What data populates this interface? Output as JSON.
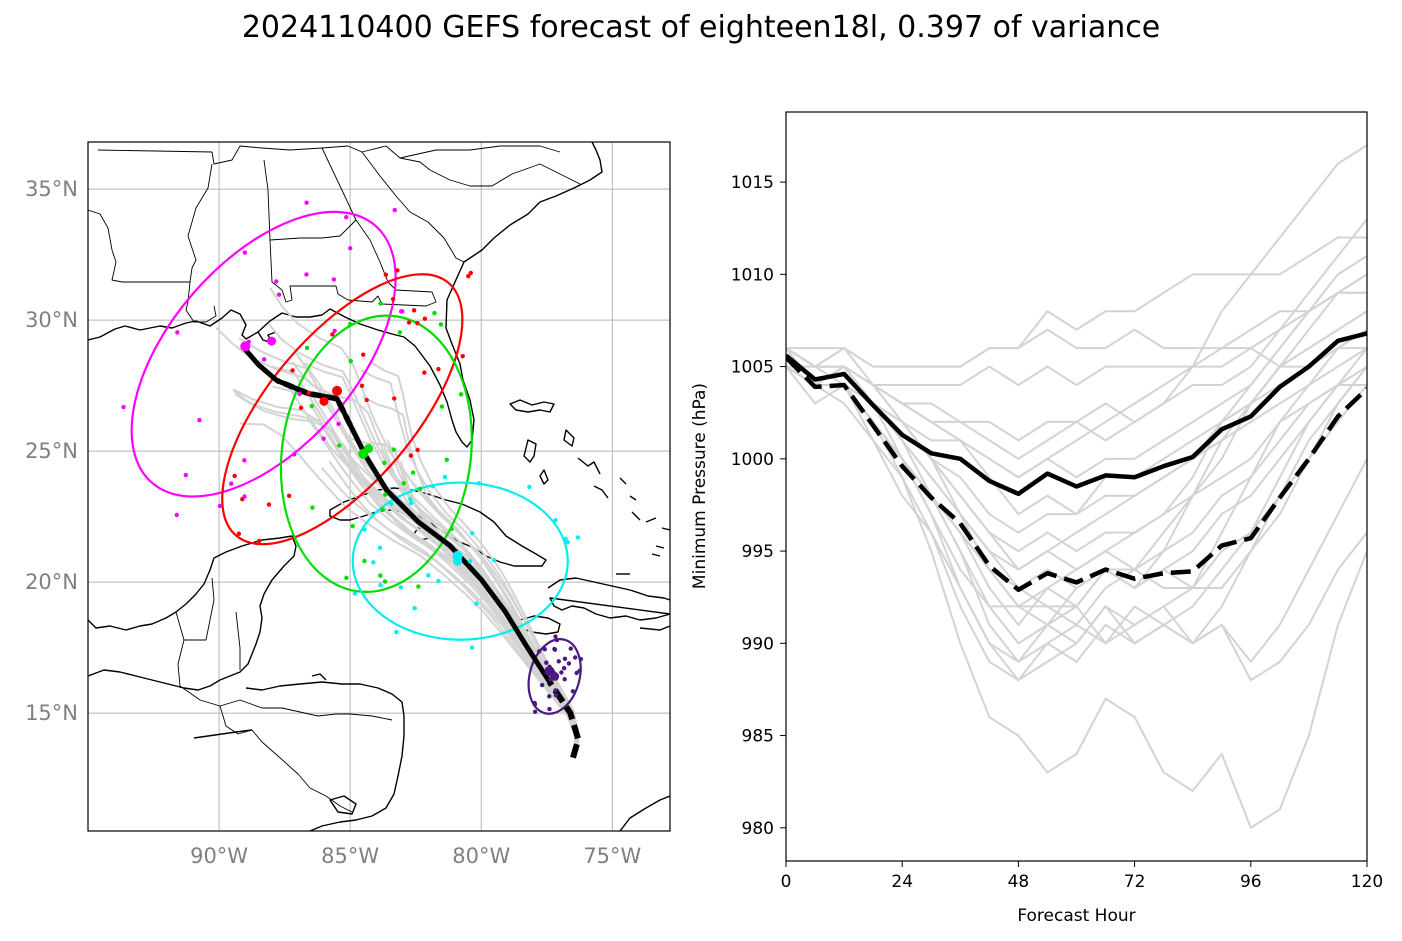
{
  "title": "2024110400 GEFS forecast of eighteen18l, 0.397 of variance",
  "map": {
    "lat_labels": [
      "35°N",
      "30°N",
      "25°N",
      "20°N",
      "15°N"
    ],
    "lat_values": [
      35,
      30,
      25,
      20,
      15
    ],
    "lon_labels": [
      "90°W",
      "85°W",
      "80°W",
      "75°W"
    ],
    "lon_values": [
      -90,
      -85,
      -80,
      -75
    ],
    "extent": {
      "lon": [
        -95,
        -72.8
      ],
      "lat": [
        10.5,
        36.8
      ]
    },
    "colors": {
      "magenta": "#ff00ff",
      "red": "#ff0000",
      "green": "#00dd00",
      "cyan": "#00eeee",
      "purple": "#4b1a80",
      "ensemble": "#d3d3d3",
      "mean": "#000000"
    },
    "mean_track": [
      [
        -76.5,
        13.3
      ],
      [
        -76.3,
        14.0
      ],
      [
        -76.6,
        15.0
      ],
      [
        -77.4,
        16.2
      ],
      [
        -78.3,
        17.6
      ],
      [
        -79.1,
        18.9
      ],
      [
        -80.0,
        20.1
      ],
      [
        -81.2,
        21.4
      ],
      [
        -82.4,
        22.3
      ],
      [
        -83.6,
        23.5
      ],
      [
        -84.4,
        24.8
      ],
      [
        -85.0,
        26.0
      ],
      [
        -85.5,
        27.0
      ],
      [
        -86.6,
        27.2
      ],
      [
        -87.8,
        27.7
      ],
      [
        -88.5,
        28.3
      ],
      [
        -89.1,
        29.0
      ]
    ],
    "clusters": [
      {
        "color": "magenta",
        "center": [
          -89.0,
          29.0
        ],
        "center2": [
          -88.0,
          29.2
        ],
        "ellipse": {
          "cx": -88.3,
          "cy": 28.7,
          "rx": 3.55,
          "ry": 6.5,
          "rot": 41
        }
      },
      {
        "color": "red",
        "center": [
          -85.5,
          27.3
        ],
        "center2": [
          -86.0,
          26.9
        ],
        "ellipse": {
          "cx": -85.3,
          "cy": 26.6,
          "rx": 2.8,
          "ry": 6.3,
          "rot": 40
        }
      },
      {
        "color": "green",
        "center": [
          -84.5,
          24.9
        ],
        "center2": [
          -84.3,
          25.1
        ],
        "ellipse": {
          "cx": -84.0,
          "cy": 24.9,
          "rx": 3.6,
          "ry": 5.3,
          "rot": 8
        }
      },
      {
        "color": "cyan",
        "center": [
          -80.9,
          21.0
        ],
        "center2": [
          -80.9,
          20.8
        ],
        "ellipse": {
          "cx": -80.8,
          "cy": 20.8,
          "rx": 4.1,
          "ry": 3.0,
          "rot": 0
        }
      },
      {
        "color": "purple",
        "center": [
          -77.4,
          16.6
        ],
        "center2": [
          -77.2,
          16.4
        ],
        "ellipse": {
          "cx": -77.2,
          "cy": 16.4,
          "rx": 0.95,
          "ry": 1.45,
          "rot": 15
        }
      }
    ]
  },
  "chart_data": {
    "type": "line",
    "x": [
      0,
      6,
      12,
      18,
      24,
      30,
      36,
      42,
      48,
      54,
      60,
      66,
      72,
      78,
      84,
      90,
      96,
      102,
      108,
      114,
      120
    ],
    "xticks": [
      0,
      24,
      48,
      72,
      96,
      120
    ],
    "yticks": [
      980,
      985,
      990,
      995,
      1000,
      1005,
      1010,
      1015
    ],
    "xlim": [
      0,
      120
    ],
    "ylim": [
      978.2,
      1018.8
    ],
    "xlabel": "Forecast Hour",
    "ylabel": "Minimum Pressure (hPa)",
    "series": [
      {
        "style": "solid-black",
        "values": [
          1005.6,
          1004.3,
          1004.6,
          1002.9,
          1001.3,
          1000.3,
          1000.0,
          998.8,
          998.1,
          999.2,
          998.5,
          999.1,
          999.0,
          999.6,
          1000.1,
          1001.6,
          1002.3,
          1003.9,
          1005.0,
          1006.4,
          1006.8
        ]
      },
      {
        "style": "dashed-black",
        "values": [
          1005.5,
          1003.9,
          1004.0,
          1001.8,
          999.6,
          997.9,
          996.5,
          994.2,
          992.9,
          993.8,
          993.3,
          994.0,
          993.5,
          993.8,
          993.9,
          995.3,
          995.7,
          997.9,
          1000.0,
          1002.3,
          1003.8
        ]
      },
      {
        "style": "ensemble",
        "values": [
          1005,
          1004,
          1005,
          1004,
          1003,
          1003,
          1002,
          1001,
          1000,
          1001,
          1002,
          1001,
          1002,
          1003,
          1005,
          1008,
          1010,
          1012,
          1014,
          1016,
          1017
        ]
      },
      {
        "style": "ensemble",
        "values": [
          1006,
          1006,
          1006,
          1005,
          1005,
          1005,
          1005,
          1006,
          1006,
          1007,
          1006,
          1006,
          1007,
          1006,
          1006,
          1006,
          1006,
          1005,
          1005,
          1006,
          1006
        ]
      },
      {
        "style": "ensemble",
        "values": [
          1005,
          1004,
          1005,
          1004,
          1004,
          1004,
          1004,
          1005,
          1004,
          1005,
          1004,
          1005,
          1005,
          1005,
          1005,
          1005,
          1006,
          1007,
          1008,
          1009,
          1010
        ]
      },
      {
        "style": "ensemble",
        "values": [
          1006,
          1005,
          1006,
          1005,
          1005,
          1005,
          1005,
          1006,
          1006,
          1008,
          1007,
          1008,
          1008,
          1009,
          1010,
          1010,
          1010,
          1010,
          1011,
          1012,
          1012
        ]
      },
      {
        "style": "ensemble",
        "values": [
          1005,
          1004,
          1004,
          1003,
          1002,
          1001,
          1001,
          1000,
          999,
          1000,
          999,
          1000,
          1000,
          1001,
          1002,
          1003,
          1004,
          1006,
          1008,
          1010,
          1011
        ]
      },
      {
        "style": "ensemble",
        "values": [
          1006,
          1005,
          1005,
          1004,
          1003,
          1002,
          1002,
          1002,
          1001,
          1002,
          1002,
          1003,
          1002,
          1003,
          1004,
          1004,
          1005,
          1007,
          1009,
          1011,
          1013
        ]
      },
      {
        "style": "ensemble",
        "values": [
          1005,
          1004,
          1005,
          1003,
          1002,
          1000,
          998,
          996,
          995,
          996,
          995,
          996,
          996,
          997,
          998,
          1000,
          1003,
          1005,
          1007,
          1009,
          1010
        ]
      },
      {
        "style": "ensemble",
        "values": [
          1006,
          1005,
          1006,
          1004,
          1002,
          1000,
          998,
          996,
          994,
          995,
          994,
          995,
          996,
          997,
          999,
          1002,
          1004,
          1006,
          1008,
          1009,
          1009
        ]
      },
      {
        "style": "ensemble",
        "values": [
          1005,
          1004,
          1004,
          1003,
          1001,
          999,
          997,
          995,
          993,
          992,
          992,
          994,
          993,
          995,
          998,
          1001,
          1003,
          1005,
          1006,
          1007,
          1008
        ]
      },
      {
        "style": "ensemble",
        "values": [
          1005,
          1003,
          1004,
          1002,
          1000,
          998,
          996,
          993,
          991,
          993,
          992,
          994,
          993,
          994,
          993,
          996,
          999,
          1002,
          1004,
          1006,
          1007
        ]
      },
      {
        "style": "ensemble",
        "values": [
          1006,
          1005,
          1005,
          1003,
          1001,
          998,
          995,
          992,
          990,
          991,
          992,
          990,
          992,
          991,
          990,
          992,
          995,
          998,
          1001,
          1003,
          1005
        ]
      },
      {
        "style": "ensemble",
        "values": [
          1005,
          1004,
          1004,
          1002,
          1000,
          998,
          995,
          991,
          989,
          990,
          989,
          991,
          990,
          991,
          992,
          994,
          996,
          999,
          1002,
          1004,
          1005
        ]
      },
      {
        "style": "ensemble",
        "values": [
          1005,
          1004,
          1004,
          1002,
          1000,
          997,
          993,
          990,
          988,
          989,
          990,
          992,
          991,
          992,
          993,
          993,
          995,
          997,
          1000,
          1002,
          1004
        ]
      },
      {
        "style": "ensemble",
        "values": [
          1005,
          1004,
          1003,
          1001,
          999,
          996,
          993,
          990,
          989,
          991,
          990,
          992,
          990,
          991,
          990,
          991,
          989,
          991,
          994,
          997,
          1000
        ]
      },
      {
        "style": "ensemble",
        "values": [
          1005,
          1004,
          1004,
          1001,
          998,
          996,
          992,
          989,
          988,
          990,
          991,
          990,
          991,
          992,
          990,
          991,
          988,
          989,
          991,
          994,
          996
        ]
      },
      {
        "style": "ensemble",
        "values": [
          1006,
          1004,
          1004,
          1002,
          999,
          995,
          990,
          986,
          985,
          983,
          984,
          987,
          986,
          983,
          982,
          984,
          980,
          981,
          985,
          991,
          995
        ]
      },
      {
        "style": "ensemble",
        "values": [
          1005,
          1004,
          1005,
          1003,
          1000,
          997,
          994,
          992,
          992,
          993,
          994,
          995,
          994,
          993,
          993,
          995,
          996,
          998,
          1000,
          1003,
          1005
        ]
      },
      {
        "style": "ensemble",
        "values": [
          1005,
          1004,
          1004,
          1002,
          1000,
          998,
          996,
          994,
          993,
          994,
          993,
          994,
          994,
          995,
          996,
          998,
          999,
          1001,
          1003,
          1004,
          1005
        ]
      },
      {
        "style": "ensemble",
        "values": [
          1006,
          1005,
          1005,
          1003,
          1001,
          999,
          997,
          995,
          994,
          995,
          996,
          997,
          998,
          999,
          1000,
          1001,
          1002,
          1003,
          1004,
          1005,
          1006
        ]
      },
      {
        "style": "ensemble",
        "values": [
          1005,
          1004,
          1004,
          1003,
          1002,
          1000,
          999,
          997,
          996,
          997,
          997,
          998,
          998,
          999,
          1000,
          1002,
          1003,
          1004,
          1005,
          1006,
          1007
        ]
      },
      {
        "style": "ensemble",
        "values": [
          1006,
          1005,
          1004,
          1002,
          1000,
          998,
          996,
          994,
          992,
          992,
          991,
          993,
          994,
          996,
          998,
          999,
          1000,
          1002,
          1003,
          1004,
          1004
        ]
      },
      {
        "style": "ensemble",
        "values": [
          1005,
          1004,
          1005,
          1004,
          1003,
          1002,
          1001,
          999,
          997,
          998,
          997,
          999,
          999,
          1000,
          1001,
          1002,
          1003,
          1005,
          1006,
          1007,
          1008
        ]
      },
      {
        "style": "ensemble",
        "values": [
          1005,
          1005,
          1005,
          1004,
          1003,
          1002,
          1001,
          1000,
          999,
          1000,
          1001,
          1002,
          1003,
          1004,
          1005,
          1006,
          1007,
          1008,
          1008,
          1009,
          1009
        ]
      },
      {
        "style": "ensemble",
        "values": [
          1006,
          1005,
          1005,
          1004,
          1002,
          1000,
          997,
          994,
          992,
          991,
          993,
          994,
          993,
          994,
          995,
          997,
          998,
          1000,
          1002,
          1004,
          1006
        ]
      }
    ]
  }
}
